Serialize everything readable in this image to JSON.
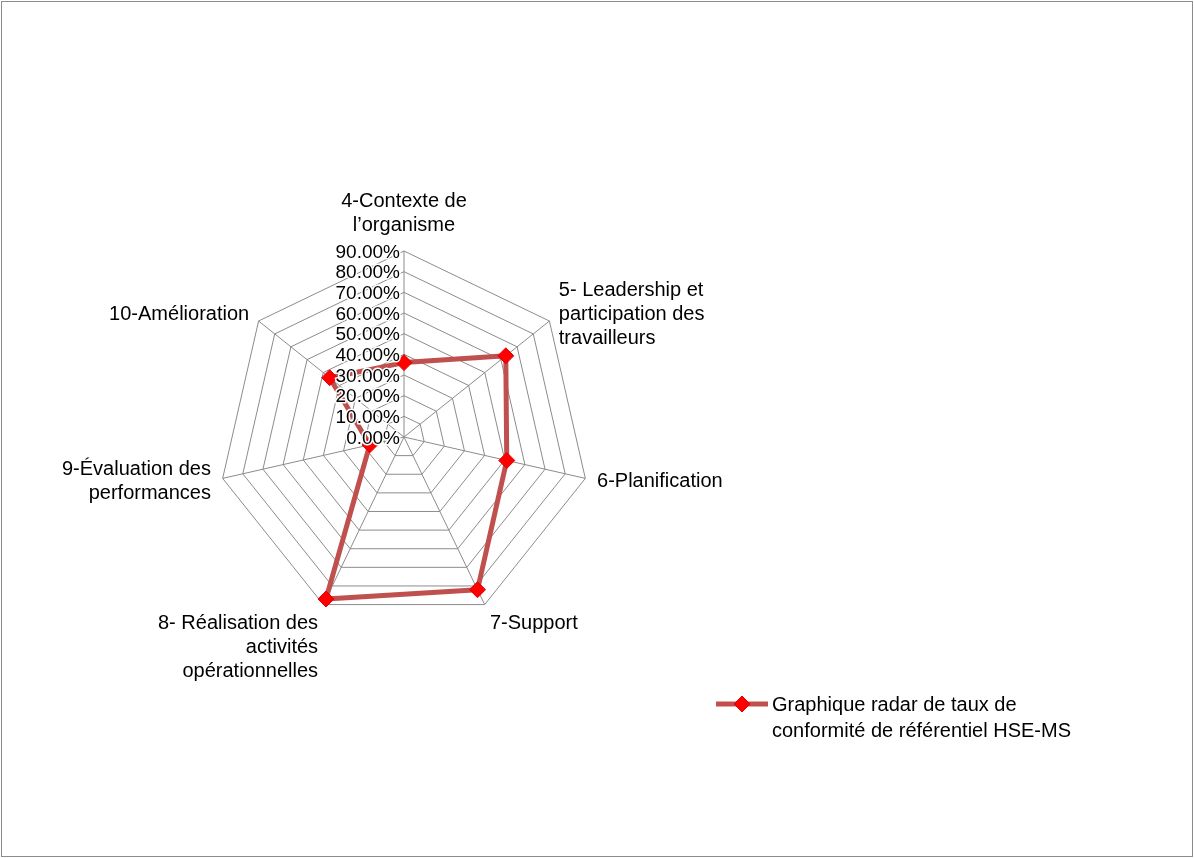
{
  "chart_data": {
    "type": "radar",
    "categories": [
      "4-Contexte de l’organisme",
      "5- Leadership et participation des travailleurs",
      "6-Planification",
      "7-Support",
      "8- Réalisation des activités opérationnelles",
      "9-Évaluation des performances",
      "10-Amélioration"
    ],
    "series": [
      {
        "name": "Graphique radar de taux de conformité de référentiel HSE-MS",
        "color": "#c0504d",
        "values": [
          36,
          63,
          51,
          82,
          87,
          17,
          46
        ]
      }
    ],
    "ylim": [
      0,
      90
    ],
    "yticks": [
      {
        "value": 0,
        "label": "0.00%"
      },
      {
        "value": 10,
        "label": "10.00%"
      },
      {
        "value": 20,
        "label": "20.00%"
      },
      {
        "value": 30,
        "label": "30.00%"
      },
      {
        "value": 40,
        "label": "40.00%"
      },
      {
        "value": 50,
        "label": "50.00%"
      },
      {
        "value": 60,
        "label": "60.00%"
      },
      {
        "value": 70,
        "label": "70.00%"
      },
      {
        "value": 80,
        "label": "80.00%"
      },
      {
        "value": 90,
        "label": "90.00%"
      }
    ],
    "grid": true,
    "marker": "diamond",
    "legend": "bottom right"
  }
}
